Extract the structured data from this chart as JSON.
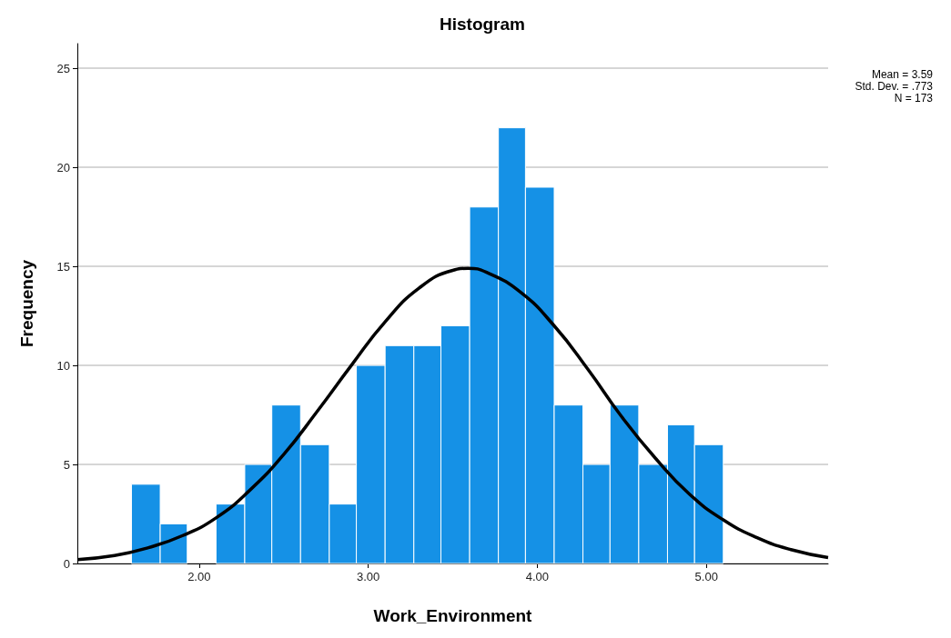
{
  "chart_data": {
    "type": "histogram",
    "title": "Histogram",
    "xlabel": "Work_Environment",
    "ylabel": "Frequency",
    "bins": [
      1.6,
      1.77,
      1.93,
      2.1,
      2.27,
      2.43,
      2.6,
      2.77,
      2.93,
      3.1,
      3.27,
      3.43,
      3.6,
      3.77,
      3.93,
      4.1,
      4.27,
      4.43,
      4.6,
      4.77,
      4.93,
      5.1
    ],
    "values": [
      4,
      2,
      0,
      3,
      5,
      8,
      6,
      3,
      10,
      11,
      11,
      12,
      18,
      22,
      19,
      8,
      5,
      8,
      5,
      7,
      6
    ],
    "color": "#1591e6",
    "series": [
      {
        "type": "line",
        "color": "#000000",
        "x": [
          1.28,
          1.5,
          1.7,
          1.9,
          2.1,
          2.3,
          2.5,
          2.7,
          2.9,
          3.1,
          3.3,
          3.5,
          3.59,
          3.7,
          3.9,
          4.1,
          4.3,
          4.5,
          4.7,
          4.9,
          5.1,
          5.3,
          5.5,
          5.72
        ],
        "values": [
          0.2,
          0.4,
          0.8,
          1.4,
          2.3,
          3.7,
          5.5,
          7.7,
          10.0,
          12.2,
          13.9,
          14.8,
          14.9,
          14.7,
          13.7,
          12.0,
          9.8,
          7.4,
          5.3,
          3.5,
          2.2,
          1.3,
          0.7,
          0.3
        ]
      }
    ],
    "xlim": [
      1.28,
      5.72
    ],
    "xticks": [
      {
        "value": 2,
        "label": "2.00"
      },
      {
        "value": 3,
        "label": "3.00"
      },
      {
        "value": 4,
        "label": "4.00"
      },
      {
        "value": 5,
        "label": "5.00"
      }
    ],
    "ylim": [
      0,
      26.25
    ],
    "yticks": [
      0,
      5,
      10,
      15,
      20,
      25
    ],
    "grid": "y",
    "annotations": [
      "Mean = 3.59",
      "Std. Dev. = .773",
      "N = 173"
    ]
  }
}
